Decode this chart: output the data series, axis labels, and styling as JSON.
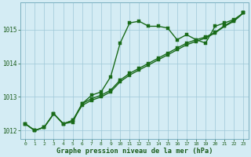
{
  "hours": [
    0,
    1,
    2,
    3,
    4,
    5,
    6,
    7,
    8,
    9,
    10,
    11,
    12,
    13,
    14,
    15,
    16,
    17,
    18,
    19,
    20,
    21,
    22,
    23
  ],
  "series1": [
    1012.2,
    1012.0,
    1012.1,
    1012.5,
    1012.2,
    1012.25,
    1012.8,
    1013.05,
    1013.15,
    1013.6,
    1014.6,
    1015.2,
    1015.25,
    1015.1,
    1015.1,
    1015.05,
    1014.7,
    1014.85,
    1014.7,
    1014.6,
    1015.1,
    1015.2,
    1015.3,
    1015.5
  ],
  "series2": [
    1012.2,
    1012.0,
    1012.1,
    1012.5,
    1012.2,
    1012.3,
    1012.75,
    1012.9,
    1013.0,
    1013.15,
    1013.45,
    1013.65,
    1013.8,
    1013.95,
    1014.1,
    1014.25,
    1014.4,
    1014.55,
    1014.65,
    1014.75,
    1014.9,
    1015.1,
    1015.25,
    1015.5
  ],
  "series3": [
    1012.2,
    1012.0,
    1012.1,
    1012.5,
    1012.2,
    1012.3,
    1012.8,
    1012.95,
    1013.05,
    1013.2,
    1013.5,
    1013.7,
    1013.85,
    1014.0,
    1014.15,
    1014.3,
    1014.45,
    1014.6,
    1014.7,
    1014.78,
    1014.92,
    1015.12,
    1015.28,
    1015.5
  ],
  "line_color": "#1a6b1a",
  "marker_color": "#1a6b1a",
  "bg_color": "#d4ecf4",
  "grid_color": "#9ec8d8",
  "text_color": "#1a5c1a",
  "xlabel": "Graphe pression niveau de la mer (hPa)",
  "ylim": [
    1011.75,
    1015.8
  ],
  "yticks": [
    1012,
    1013,
    1014,
    1015
  ],
  "xticks": [
    0,
    1,
    2,
    3,
    4,
    5,
    6,
    7,
    8,
    9,
    10,
    11,
    12,
    13,
    14,
    15,
    16,
    17,
    18,
    19,
    20,
    21,
    22,
    23
  ],
  "marker_size": 2.5,
  "line_width": 1.0
}
